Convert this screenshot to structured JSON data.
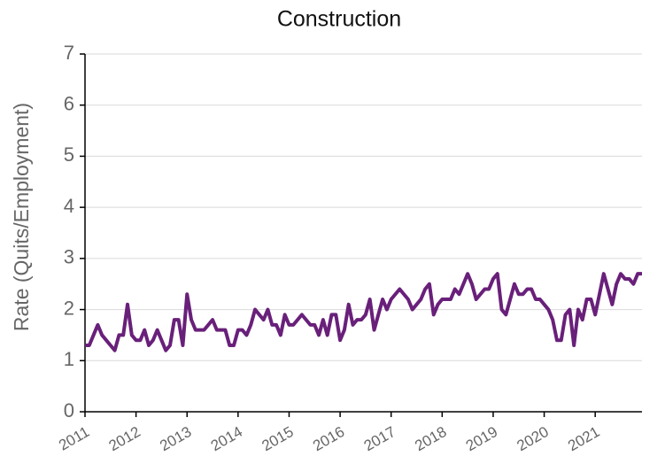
{
  "chart_data": {
    "type": "line",
    "title": "Construction",
    "y_label": "Rate (Quits/Employment)",
    "categories": [
      "2011",
      null,
      null,
      null,
      null,
      null,
      null,
      null,
      null,
      null,
      null,
      null,
      "2012",
      null,
      null,
      null,
      null,
      null,
      null,
      null,
      null,
      null,
      null,
      null,
      "2013",
      null,
      null,
      null,
      null,
      null,
      null,
      null,
      null,
      null,
      null,
      null,
      "2014",
      null,
      null,
      null,
      null,
      null,
      null,
      null,
      null,
      null,
      null,
      null,
      "2015",
      null,
      null,
      null,
      null,
      null,
      null,
      null,
      null,
      null,
      null,
      null,
      "2016",
      null,
      null,
      null,
      null,
      null,
      null,
      null,
      null,
      null,
      null,
      null,
      "2017",
      null,
      null,
      null,
      null,
      null,
      null,
      null,
      null,
      null,
      null,
      null,
      "2018",
      null,
      null,
      null,
      null,
      null,
      null,
      null,
      null,
      null,
      null,
      null,
      "2019",
      null,
      null,
      null,
      null,
      null,
      null,
      null,
      null,
      null,
      null,
      null,
      "2020",
      null,
      null,
      null,
      null,
      null,
      null,
      null,
      null,
      null,
      null,
      null,
      "2021",
      null,
      null,
      null,
      null,
      null,
      null,
      null,
      null,
      null,
      null,
      null
    ],
    "series": [
      {
        "name": "Construction",
        "color": "#69207a",
        "values": [
          1.3,
          1.3,
          1.5,
          1.7,
          1.5,
          1.4,
          1.3,
          1.2,
          1.5,
          1.5,
          2.1,
          1.5,
          1.4,
          1.4,
          1.6,
          1.3,
          1.4,
          1.6,
          1.4,
          1.2,
          1.3,
          1.8,
          1.8,
          1.3,
          2.3,
          1.8,
          1.6,
          1.6,
          1.6,
          1.7,
          1.8,
          1.6,
          1.6,
          1.6,
          1.3,
          1.3,
          1.6,
          1.6,
          1.5,
          1.7,
          2.0,
          1.9,
          1.8,
          2.0,
          1.7,
          1.7,
          1.5,
          1.9,
          1.7,
          1.7,
          1.8,
          1.9,
          1.8,
          1.7,
          1.7,
          1.5,
          1.8,
          1.5,
          1.9,
          1.9,
          1.4,
          1.6,
          2.1,
          1.7,
          1.8,
          1.8,
          1.9,
          2.2,
          1.6,
          1.9,
          2.2,
          2.0,
          2.2,
          2.3,
          2.4,
          2.3,
          2.2,
          2.0,
          2.1,
          2.2,
          2.4,
          2.5,
          1.9,
          2.1,
          2.2,
          2.2,
          2.2,
          2.4,
          2.3,
          2.5,
          2.7,
          2.5,
          2.2,
          2.3,
          2.4,
          2.4,
          2.6,
          2.7,
          2.0,
          1.9,
          2.2,
          2.5,
          2.3,
          2.3,
          2.4,
          2.4,
          2.2,
          2.2,
          2.1,
          2.0,
          1.8,
          1.4,
          1.4,
          1.9,
          2.0,
          1.3,
          2.0,
          1.8,
          2.2,
          2.2,
          1.9,
          2.3,
          2.7,
          2.4,
          2.1,
          2.5,
          2.7,
          2.6,
          2.6,
          2.5,
          2.7,
          2.7
        ]
      }
    ],
    "ylim": [
      0,
      7
    ],
    "yticks": [
      0,
      1,
      2,
      3,
      4,
      5,
      6,
      7
    ],
    "grid": true
  }
}
